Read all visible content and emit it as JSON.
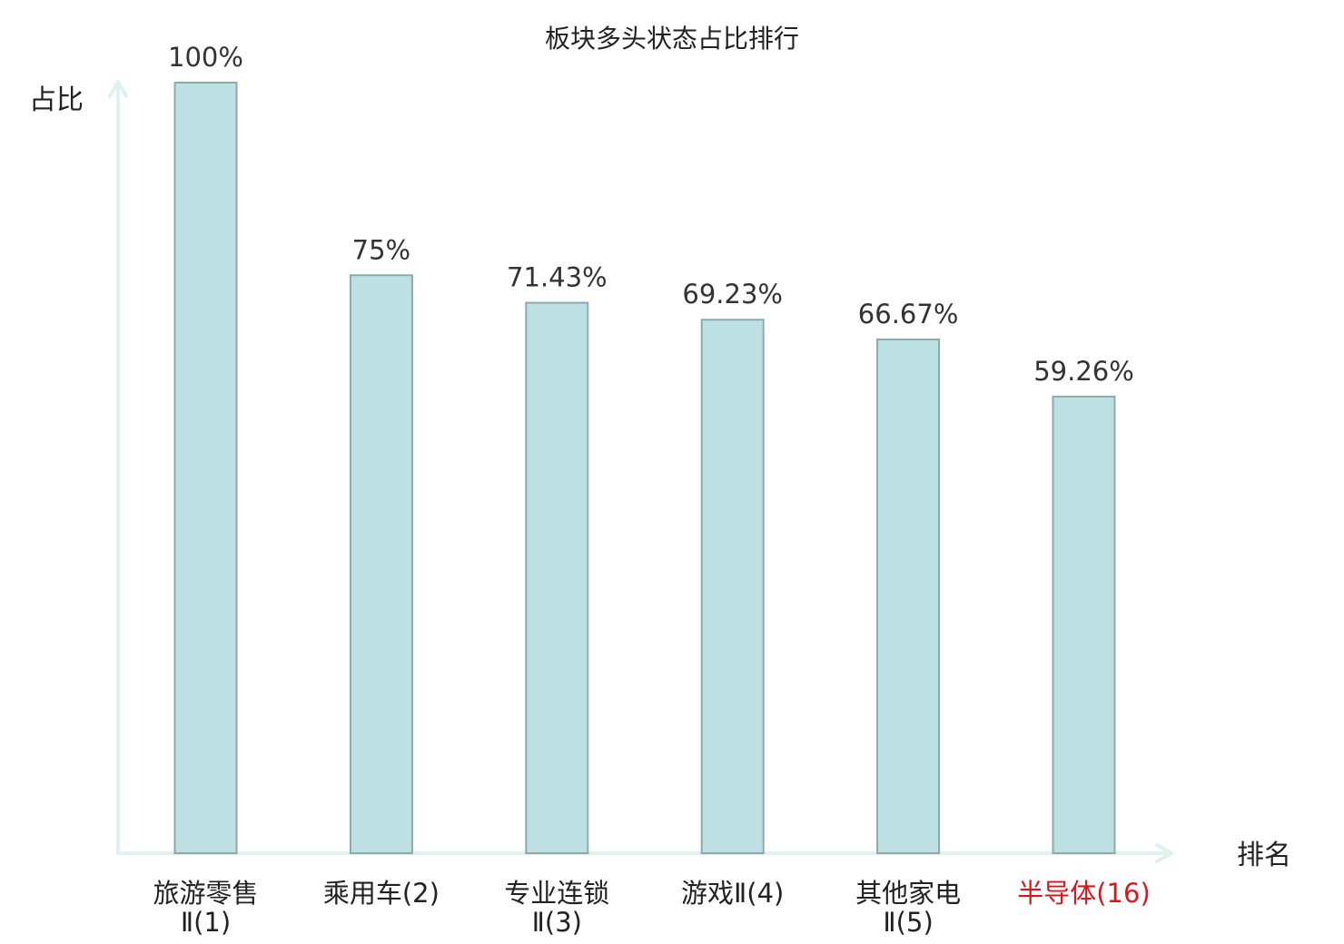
{
  "chart_data": {
    "type": "bar",
    "title": "板块多头状态占比排行",
    "ylabel": "占比",
    "xlabel": "排名",
    "ylim": [
      0,
      100
    ],
    "grid": false,
    "categories": [
      [
        "旅游零售",
        "Ⅱ(1)"
      ],
      [
        "乘用车(2)"
      ],
      [
        "专业连锁",
        "Ⅱ(3)"
      ],
      [
        "游戏Ⅱ(4)"
      ],
      [
        "其他家电",
        "Ⅱ(5)"
      ],
      [
        "半导体(16)"
      ]
    ],
    "values": [
      100,
      75,
      71.43,
      69.23,
      66.67,
      59.26
    ],
    "value_labels": [
      "100%",
      "75%",
      "71.43%",
      "69.23%",
      "66.67%",
      "59.26%"
    ],
    "highlight_index": 5,
    "colors": {
      "bar_fill": "#bde1e3",
      "bar_stroke": "#8fa8aa",
      "axis": "#dff2ef",
      "highlight_text": "#e0151b"
    }
  }
}
